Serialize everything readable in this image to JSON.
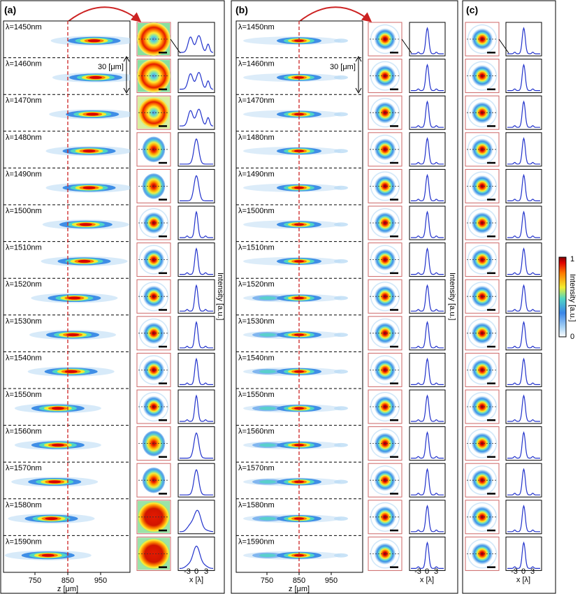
{
  "panels": [
    {
      "label": "(a)",
      "xlabel": "z [μm]",
      "xticks": [
        "750",
        "850",
        "950"
      ],
      "scale_bar": "30 [μm]",
      "profile_xlabel": "x [λ]",
      "profile_ticks": [
        "-3",
        "0",
        "3"
      ],
      "profile_ylabel": "Intensity [a.u.]"
    },
    {
      "label": "(b)",
      "xlabel": "z [μm]",
      "xticks": [
        "750",
        "850",
        "950"
      ],
      "scale_bar": "30 [μm]",
      "profile_xlabel": "x [λ]",
      "profile_ticks": [
        "-3",
        "0",
        "3"
      ],
      "profile_ylabel": "Intensity [a.u.]"
    },
    {
      "label": "(c)",
      "profile_xlabel": "x [λ]",
      "profile_ticks": [
        "-3",
        "0",
        "3"
      ]
    }
  ],
  "rows": [
    "λ=1450nm",
    "λ=1460nm",
    "λ=1470nm",
    "λ=1480nm",
    "λ=1490nm",
    "λ=1500nm",
    "λ=1510nm",
    "λ=1520nm",
    "λ=1530nm",
    "λ=1540nm",
    "λ=1550nm",
    "λ=1560nm",
    "λ=1570nm",
    "λ=1580nm",
    "λ=1590nm"
  ],
  "colorbar": {
    "label": "Intensity [a.u.]",
    "max": "1",
    "min": "0"
  },
  "colors": {
    "dashed_focus": "#cc2222",
    "profile_line": "#2233cc",
    "arrow": "#cc2222",
    "spot_border": "#cc6666"
  },
  "chart_data": {
    "type": "heatmap",
    "focal_plane_um": 850,
    "panel_a": {
      "focus_z_um": [
        930,
        935,
        925,
        915,
        915,
        905,
        900,
        870,
        865,
        860,
        820,
        820,
        810,
        800,
        790
      ],
      "spot_type": [
        "donut",
        "donut",
        "ring",
        "blob",
        "blob",
        "spot",
        "spot",
        "spot",
        "spot",
        "spot",
        "spot",
        "blob",
        "blob",
        "wide",
        "wide"
      ]
    },
    "panel_b": {
      "focus_z_um": [
        850,
        850,
        850,
        850,
        850,
        850,
        850,
        850,
        850,
        850,
        850,
        850,
        850,
        850,
        850
      ]
    },
    "panel_c": {
      "spot_type": "airy"
    }
  }
}
